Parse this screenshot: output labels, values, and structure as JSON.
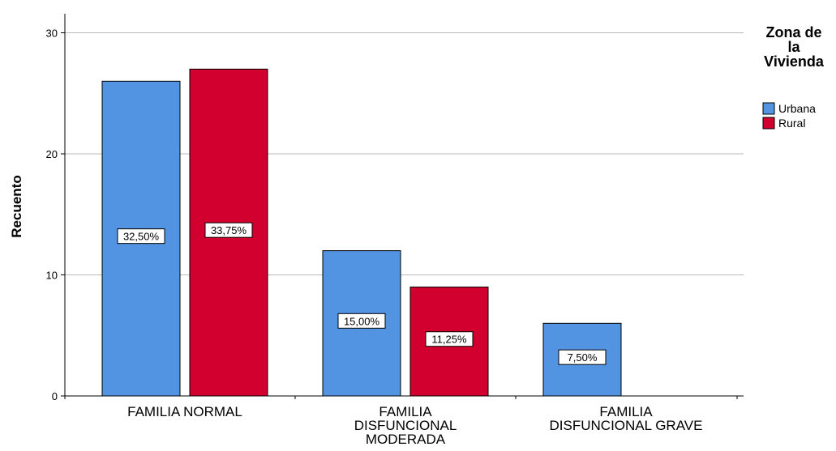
{
  "chart_data": {
    "type": "bar",
    "title": "",
    "xlabel": "",
    "ylabel": "Recuento",
    "ylim": [
      0,
      30
    ],
    "yticks": [
      0,
      10,
      20,
      30
    ],
    "grid": true,
    "categories": [
      [
        "FAMILIA NORMAL"
      ],
      [
        "FAMILIA",
        "DISFUNCIONAL",
        "MODERADA"
      ],
      [
        "FAMILIA",
        "DISFUNCIONAL GRAVE"
      ]
    ],
    "series": [
      {
        "name": "Urbana",
        "color": "#5294e2",
        "values": [
          26,
          12,
          6
        ],
        "data_labels": [
          "32,50%",
          "15,00%",
          "7,50%"
        ]
      },
      {
        "name": "Rural",
        "color": "#d1002f",
        "values": [
          27,
          9,
          0
        ],
        "data_labels": [
          "33,75%",
          "11,25%",
          ""
        ]
      }
    ],
    "legend": {
      "title": [
        "Zona de",
        "la",
        "Vivienda"
      ],
      "position": "top-right"
    }
  }
}
